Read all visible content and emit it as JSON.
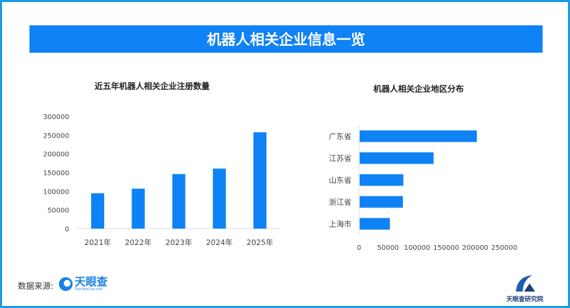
{
  "title": "机器人相关企业信息一览",
  "chart_data": [
    {
      "type": "bar",
      "orientation": "vertical",
      "title": "近五年机器人相关企业注册数量",
      "categories": [
        "2021年",
        "2022年",
        "2023年",
        "2024年",
        "2025年"
      ],
      "values": [
        94500,
        106800,
        145800,
        160400,
        257500
      ],
      "ylim": [
        0,
        300000
      ],
      "yticks": [
        "0",
        "50000",
        "100000",
        "150000",
        "200000",
        "250000",
        "300000"
      ],
      "grid": false,
      "color": "#0f82f5"
    },
    {
      "type": "bar",
      "orientation": "horizontal",
      "title": "机器人相关企业地区分布",
      "categories": [
        "广东省",
        "江苏省",
        "山东省",
        "浙江省",
        "上海市"
      ],
      "values": [
        201600,
        127200,
        75200,
        74400,
        52000
      ],
      "xlim": [
        0,
        250000
      ],
      "xticks": [
        "0",
        "50000",
        "100000",
        "150000",
        "200000",
        "250000"
      ],
      "grid": false,
      "color": "#0f82f5"
    }
  ],
  "footer": {
    "source_label": "数据来源:",
    "source_logo_text": "天眼查",
    "source_logo_sub": "TianYanCha.com",
    "institute": "天眼查研究院"
  }
}
